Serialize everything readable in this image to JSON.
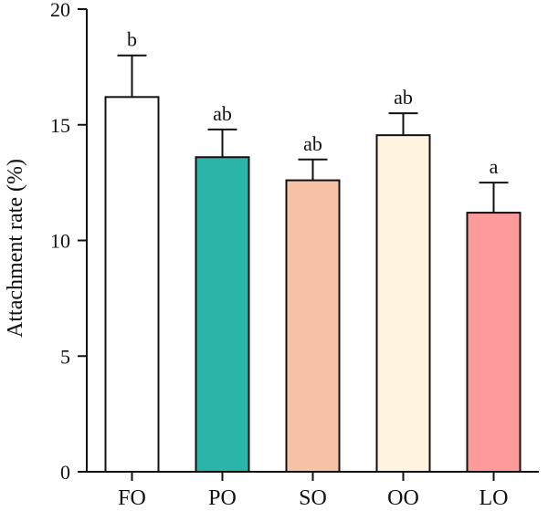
{
  "chart_data": {
    "type": "bar",
    "title": "",
    "xlabel": "",
    "ylabel": "Attachment rate (%)",
    "ylim": [
      0,
      20
    ],
    "yticks": [
      0,
      5,
      10,
      15,
      20
    ],
    "grid": false,
    "categories": [
      "FO",
      "PO",
      "SO",
      "OO",
      "LO"
    ],
    "values": [
      16.2,
      13.6,
      12.6,
      14.55,
      11.2
    ],
    "errors": [
      1.8,
      1.2,
      0.9,
      0.95,
      1.3
    ],
    "significance_letters": [
      "b",
      "ab",
      "ab",
      "ab",
      "a"
    ],
    "bar_colors": [
      "#ffffff",
      "#2ab5a8",
      "#f7c2a5",
      "#fff4e0",
      "#fd9b9b"
    ]
  }
}
